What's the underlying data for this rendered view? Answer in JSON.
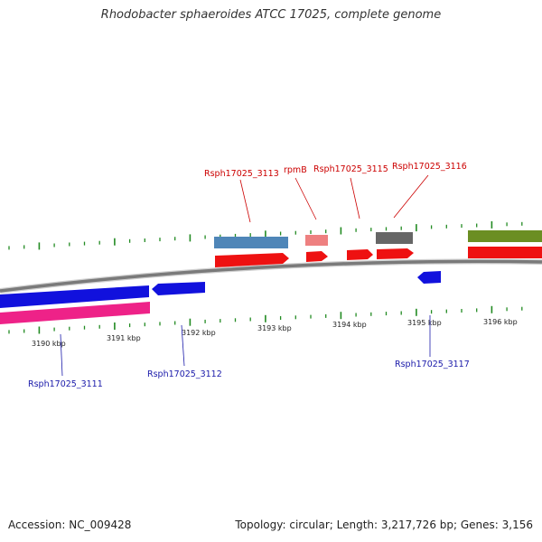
{
  "title": "Rhodobacter sphaeroides ATCC 17025, complete genome",
  "footer": {
    "accession": "Accession: NC_009428",
    "topology": "Topology: circular; Length: 3,217,726 bp; Genes: 3,156"
  },
  "colors": {
    "backbone": "#808080",
    "tick": "#228b22",
    "upper_label": "#cc0000",
    "lower_label": "#1a1aaa",
    "red_gene": "#ee1111",
    "blue_gene": "#1111dd",
    "magenta_gene": "#ee2288",
    "steel_gene": "#4f86b8",
    "salmon_gene": "#ee8080",
    "gray_gene": "#666666",
    "olive_gene": "#6b8e23"
  },
  "kbp_labels": [
    "3190 kbp",
    "3191 kbp",
    "3192 kbp",
    "3193 kbp",
    "3194 kbp",
    "3195 kbp",
    "3196 kbp"
  ],
  "genes": [
    {
      "name": "Rsph17025_3113",
      "color": "upper_label"
    },
    {
      "name": "rpmB",
      "color": "upper_label"
    },
    {
      "name": "Rsph17025_3115",
      "color": "upper_label"
    },
    {
      "name": "Rsph17025_3116",
      "color": "upper_label"
    },
    {
      "name": "Rsph17025_3111",
      "color": "lower_label"
    },
    {
      "name": "Rsph17025_3112",
      "color": "lower_label"
    },
    {
      "name": "Rsph17025_3117",
      "color": "lower_label"
    }
  ]
}
